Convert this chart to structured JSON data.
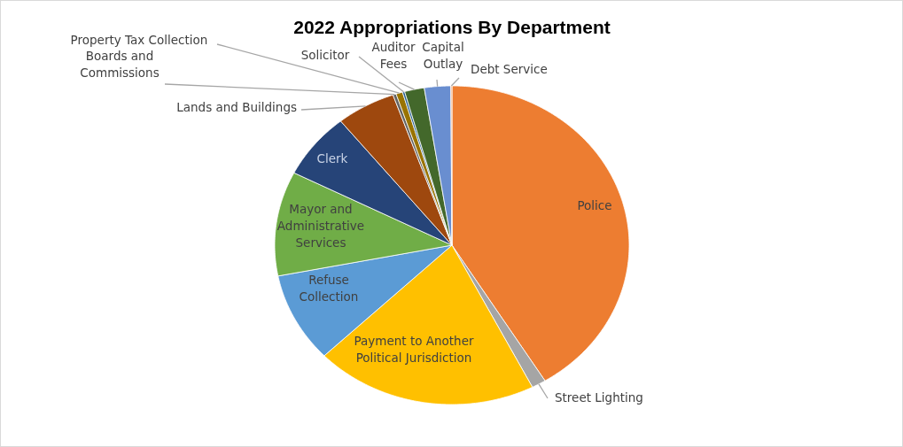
{
  "chart_data": {
    "type": "pie",
    "title": "2022 Appropriations By Department",
    "categories": [
      "Police",
      "Street Lighting",
      "Payment to Another Political Jurisdiction",
      "Refuse Collection",
      "Mayor and Administrative Services",
      "Clerk",
      "Lands and Buildings",
      "Boards and Commissions",
      "Property Tax Collection",
      "Solicitor",
      "Auditor Fees",
      "Capital Outlay",
      "Debt Service"
    ],
    "values": [
      41.2,
      1.3,
      20.3,
      9.1,
      10.6,
      6.7,
      5.4,
      0.3,
      0.6,
      0.2,
      1.8,
      2.4,
      0.1
    ],
    "colors": [
      "#ed7d31",
      "#a5a5a5",
      "#ffc000",
      "#5b9bd5",
      "#70ad47",
      "#264478",
      "#9e480e",
      "#636363",
      "#997300",
      "#255e91",
      "#43682b",
      "#698ed0",
      "#f1975a"
    ]
  }
}
